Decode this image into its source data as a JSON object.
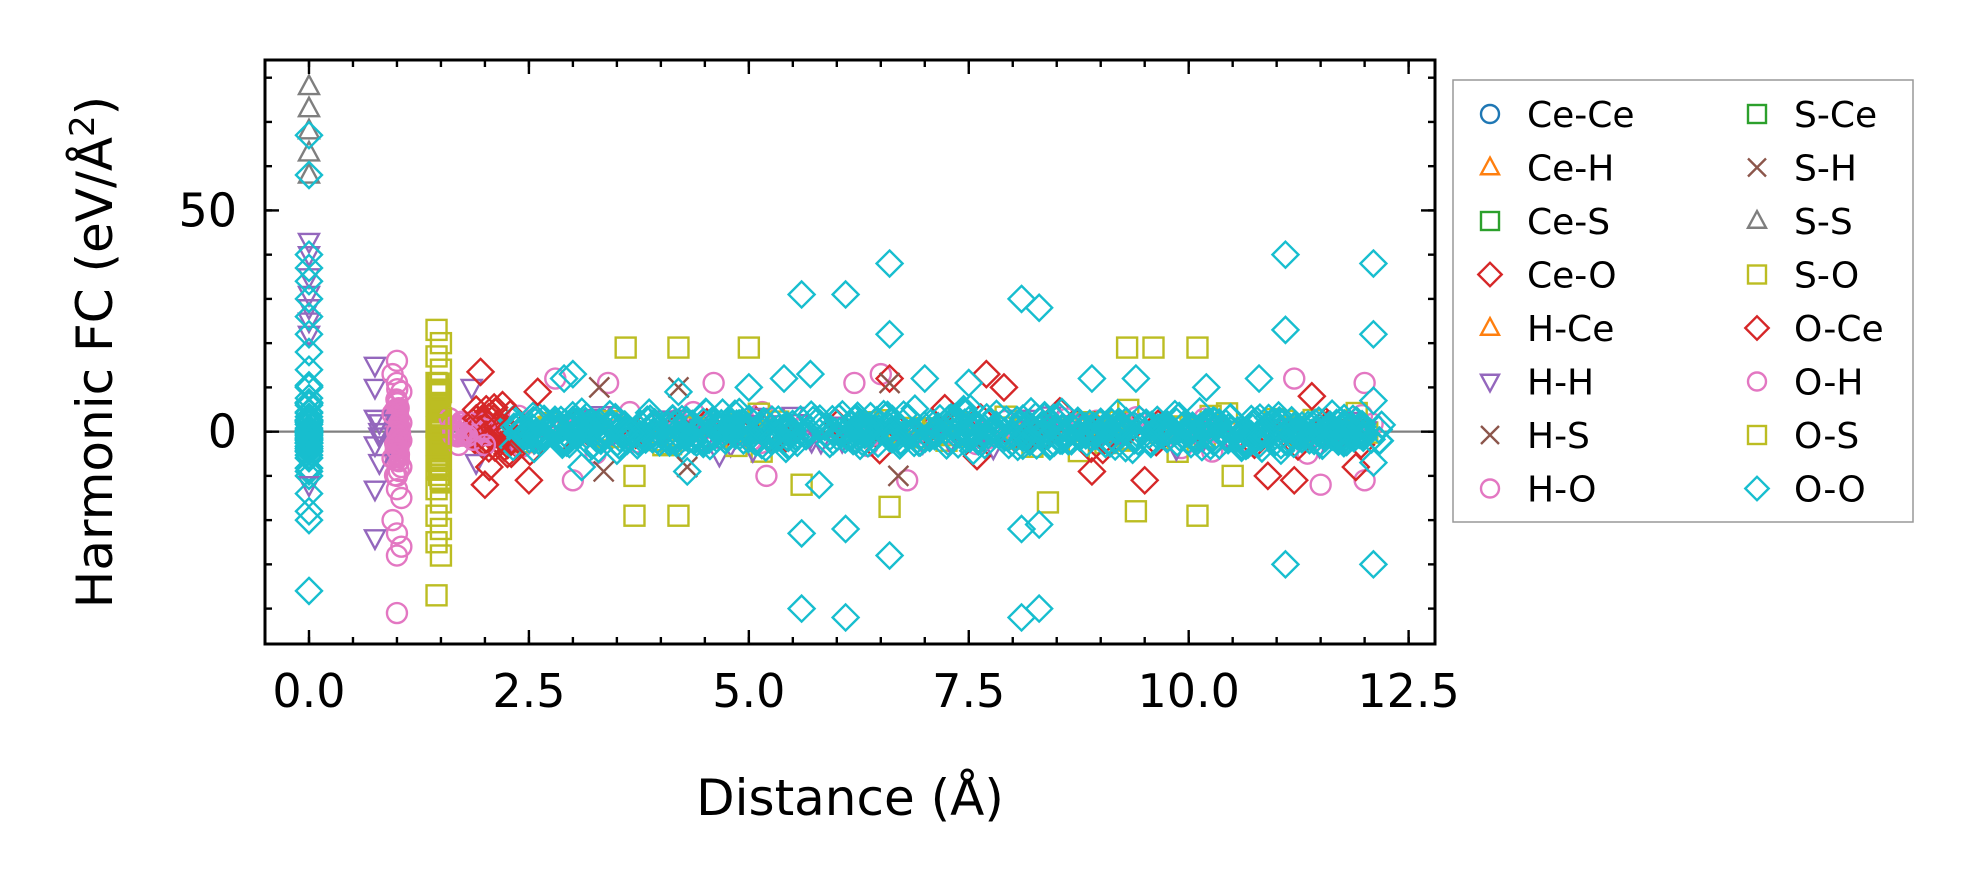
{
  "chart_data": {
    "type": "scatter",
    "title": "",
    "xlabel": "Distance (Å)",
    "ylabel_main": "Harmonic FC (eV/Å",
    "ylabel_sup": "2",
    "ylabel_close": ")",
    "xlim": [
      -0.5,
      12.8
    ],
    "ylim": [
      -48,
      84
    ],
    "xticks": [
      0.0,
      2.5,
      5.0,
      7.5,
      10.0,
      12.5
    ],
    "xtick_labels": [
      "0.0",
      "2.5",
      "5.0",
      "7.5",
      "10.0",
      "12.5"
    ],
    "yticks": [
      0,
      50
    ],
    "ytick_labels": [
      "0",
      "50"
    ],
    "x_minor_step": 0.5,
    "y_minor_step": 10,
    "zero_line": true,
    "legend_position": "right-outside",
    "series": [
      {
        "name": "Ce-Ce",
        "marker": "circle",
        "color": "#1f77b4",
        "points": []
      },
      {
        "name": "Ce-H",
        "marker": "triangle-up",
        "color": "#ff7f0e",
        "points": []
      },
      {
        "name": "Ce-S",
        "marker": "square",
        "color": "#2ca02c",
        "points": []
      },
      {
        "name": "Ce-O",
        "marker": "diamond",
        "color": "#d62728",
        "points": [
          [
            1.95,
            13.5
          ],
          [
            2.0,
            -12
          ],
          [
            2.05,
            -8
          ],
          [
            1.9,
            5
          ],
          [
            2.1,
            3
          ],
          [
            2.2,
            6
          ],
          [
            2.3,
            -5
          ],
          [
            2.5,
            -11
          ],
          [
            2.6,
            9
          ],
          [
            6.6,
            12
          ],
          [
            7.7,
            13
          ],
          [
            7.9,
            10
          ],
          [
            8.9,
            -9
          ],
          [
            9.5,
            -11
          ],
          [
            10.9,
            -10
          ],
          [
            11.2,
            -11
          ],
          [
            11.4,
            8
          ],
          [
            11.9,
            -8
          ]
        ]
      },
      {
        "name": "H-Ce",
        "marker": "triangle-up",
        "color": "#ff7f0e",
        "points": []
      },
      {
        "name": "H-H",
        "marker": "triangle-down",
        "color": "#9467bd",
        "points": [
          [
            0.0,
            43
          ],
          [
            0.0,
            40
          ],
          [
            0.0,
            35
          ],
          [
            0.0,
            31
          ],
          [
            0.0,
            28
          ],
          [
            0.0,
            25
          ],
          [
            0.0,
            22
          ],
          [
            0.0,
            -12
          ],
          [
            0.75,
            15
          ],
          [
            0.75,
            10
          ],
          [
            0.75,
            3
          ],
          [
            0.8,
            2
          ],
          [
            0.8,
            0
          ],
          [
            0.8,
            -1
          ],
          [
            0.75,
            -3
          ],
          [
            0.8,
            -7
          ],
          [
            0.75,
            -13
          ],
          [
            0.75,
            -24
          ],
          [
            1.85,
            10
          ],
          [
            1.9,
            -7
          ]
        ]
      },
      {
        "name": "H-S",
        "marker": "x",
        "color": "#8c564b",
        "points": [
          [
            3.3,
            10
          ],
          [
            3.35,
            -9
          ],
          [
            4.2,
            10
          ],
          [
            4.3,
            -8
          ],
          [
            6.6,
            11
          ],
          [
            6.7,
            -10
          ]
        ]
      },
      {
        "name": "H-O",
        "marker": "circle",
        "color": "#e377c2",
        "points": [
          [
            1.0,
            16
          ],
          [
            0.95,
            13
          ],
          [
            1.0,
            11
          ],
          [
            1.05,
            9
          ],
          [
            1.0,
            7
          ],
          [
            0.95,
            4
          ],
          [
            1.05,
            2
          ],
          [
            1.0,
            0
          ],
          [
            1.05,
            -2
          ],
          [
            1.0,
            -4
          ],
          [
            0.95,
            -6
          ],
          [
            1.05,
            -8
          ],
          [
            1.0,
            -10
          ],
          [
            1.0,
            -13
          ],
          [
            1.05,
            -15
          ],
          [
            0.95,
            -20
          ],
          [
            1.0,
            -23
          ],
          [
            1.05,
            -26
          ],
          [
            1.0,
            -28
          ],
          [
            1.0,
            -41
          ],
          [
            1.6,
            3
          ],
          [
            1.65,
            0
          ],
          [
            1.7,
            -3
          ],
          [
            1.75,
            2
          ],
          [
            1.8,
            -1
          ],
          [
            2.0,
            -3
          ],
          [
            2.8,
            12
          ],
          [
            3.0,
            -11
          ],
          [
            3.4,
            11
          ],
          [
            4.6,
            11
          ],
          [
            5.2,
            -10
          ],
          [
            6.2,
            11
          ],
          [
            6.5,
            13
          ],
          [
            6.8,
            -11
          ],
          [
            11.2,
            12
          ],
          [
            11.5,
            -12
          ],
          [
            12.0,
            11
          ],
          [
            12.0,
            -11
          ]
        ]
      },
      {
        "name": "S-Ce",
        "marker": "square",
        "color": "#2ca02c",
        "points": []
      },
      {
        "name": "S-H",
        "marker": "x",
        "color": "#8c564b",
        "points": []
      },
      {
        "name": "S-S",
        "marker": "triangle-up",
        "color": "#7f7f7f",
        "points": [
          [
            0.0,
            78
          ],
          [
            0.0,
            73
          ],
          [
            0.0,
            68
          ],
          [
            0.0,
            63
          ],
          [
            0.0,
            58
          ]
        ]
      },
      {
        "name": "S-O",
        "marker": "square",
        "color": "#bcbd22",
        "points": [
          [
            1.45,
            23
          ],
          [
            1.5,
            20
          ],
          [
            1.45,
            17
          ],
          [
            1.5,
            14
          ],
          [
            1.45,
            11
          ],
          [
            1.5,
            9
          ],
          [
            1.45,
            6
          ],
          [
            1.5,
            3
          ],
          [
            1.45,
            1
          ],
          [
            1.5,
            -1
          ],
          [
            1.45,
            -3
          ],
          [
            1.5,
            -6
          ],
          [
            1.45,
            -8
          ],
          [
            1.5,
            -11
          ],
          [
            1.45,
            -13
          ],
          [
            1.5,
            -16
          ],
          [
            1.45,
            -19
          ],
          [
            1.5,
            -22
          ],
          [
            1.45,
            -25
          ],
          [
            1.5,
            -28
          ],
          [
            1.45,
            -37
          ],
          [
            3.6,
            19
          ],
          [
            3.7,
            -10
          ],
          [
            3.7,
            -19
          ],
          [
            4.2,
            19
          ],
          [
            4.2,
            -19
          ],
          [
            5.0,
            19
          ],
          [
            5.6,
            -12
          ],
          [
            6.6,
            -17
          ],
          [
            8.4,
            -16
          ],
          [
            9.3,
            19
          ],
          [
            9.4,
            -18
          ],
          [
            9.6,
            19
          ],
          [
            10.1,
            19
          ],
          [
            10.1,
            -19
          ],
          [
            10.5,
            -10
          ]
        ]
      },
      {
        "name": "O-Ce",
        "marker": "diamond",
        "color": "#d62728",
        "points": []
      },
      {
        "name": "O-H",
        "marker": "circle",
        "color": "#e377c2",
        "points": []
      },
      {
        "name": "O-S",
        "marker": "square",
        "color": "#bcbd22",
        "points": []
      },
      {
        "name": "O-O",
        "marker": "diamond",
        "color": "#17becf",
        "points": [
          [
            0.0,
            67
          ],
          [
            0.0,
            58
          ],
          [
            0.0,
            40
          ],
          [
            0.0,
            37
          ],
          [
            0.0,
            34
          ],
          [
            0.0,
            30
          ],
          [
            0.0,
            26
          ],
          [
            0.0,
            22
          ],
          [
            0.0,
            18
          ],
          [
            0.0,
            14
          ],
          [
            0.0,
            10
          ],
          [
            0.0,
            6
          ],
          [
            0.0,
            2
          ],
          [
            0.0,
            -2
          ],
          [
            0.0,
            -6
          ],
          [
            0.0,
            -10
          ],
          [
            0.0,
            -14
          ],
          [
            0.0,
            -18
          ],
          [
            0.0,
            -20
          ],
          [
            0.0,
            -36
          ],
          [
            2.9,
            12
          ],
          [
            3.0,
            13
          ],
          [
            3.1,
            -8
          ],
          [
            4.2,
            9
          ],
          [
            4.3,
            -9
          ],
          [
            5.0,
            10
          ],
          [
            5.4,
            12
          ],
          [
            5.6,
            31
          ],
          [
            5.6,
            -23
          ],
          [
            5.6,
            -40
          ],
          [
            5.7,
            13
          ],
          [
            5.8,
            -12
          ],
          [
            6.1,
            31
          ],
          [
            6.1,
            -22
          ],
          [
            6.1,
            -42
          ],
          [
            6.6,
            38
          ],
          [
            6.6,
            22
          ],
          [
            6.6,
            -28
          ],
          [
            7.0,
            12
          ],
          [
            7.5,
            11
          ],
          [
            8.1,
            30
          ],
          [
            8.1,
            -22
          ],
          [
            8.1,
            -42
          ],
          [
            8.3,
            28
          ],
          [
            8.3,
            -21
          ],
          [
            8.3,
            -40
          ],
          [
            8.9,
            12
          ],
          [
            9.4,
            12
          ],
          [
            10.2,
            10
          ],
          [
            10.8,
            12
          ],
          [
            11.1,
            40
          ],
          [
            11.1,
            23
          ],
          [
            11.1,
            -30
          ],
          [
            12.1,
            38
          ],
          [
            12.1,
            22
          ],
          [
            12.1,
            -30
          ],
          [
            12.1,
            7
          ],
          [
            12.1,
            -7
          ]
        ]
      }
    ],
    "dense_band": {
      "series": "O-O",
      "x_start": 2.3,
      "x_end": 12.2,
      "y_spread": 6,
      "count": 700
    }
  }
}
